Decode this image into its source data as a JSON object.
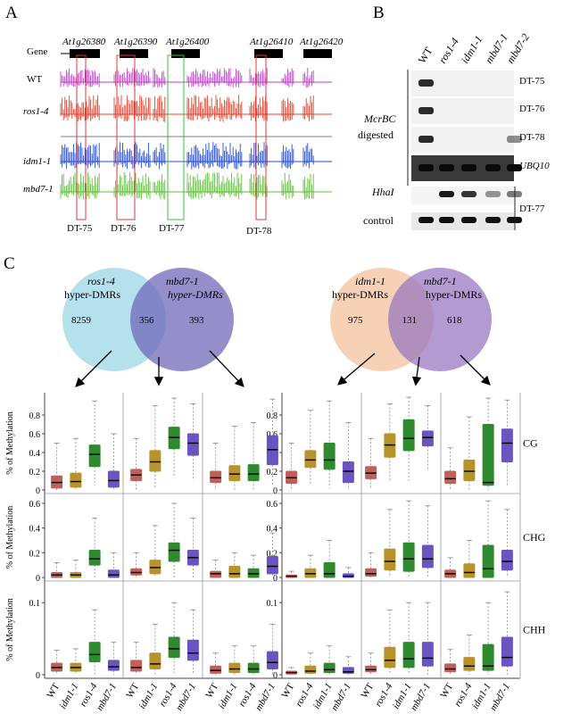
{
  "panel_a": {
    "label": "A",
    "gene_row_label": "Gene",
    "genes": [
      "At1g26380",
      "At1g26390",
      "At1g26400",
      "At1g26410",
      "At1g26420"
    ],
    "tracks": [
      {
        "label": "WT",
        "italic": false,
        "color": "#c040d0"
      },
      {
        "label": "ros1-4",
        "italic": true,
        "color": "#e8402a"
      },
      {
        "label": "idm1-1",
        "italic": true,
        "color": "#1f4be0"
      },
      {
        "label": "mbd7-1",
        "italic": true,
        "color": "#5cc234"
      }
    ],
    "regions": [
      {
        "label": "DT-75",
        "box_color": "#e23a3a"
      },
      {
        "label": "DT-76",
        "box_color": "#e23a3a"
      },
      {
        "label": "DT-77",
        "box_color": "#3cbf3c"
      },
      {
        "label": "DT-78",
        "box_color": "#e23a3a"
      }
    ]
  },
  "panel_b": {
    "label": "B",
    "lanes": [
      "WT",
      "ros1-4",
      "idm1-1",
      "mbd7-1",
      "mbd7-2"
    ],
    "group_label_1": "McrBC",
    "group_label_2": "digested",
    "rows": [
      {
        "label": "DT-75",
        "italic": false,
        "bands": [
          1,
          0,
          0,
          0,
          0
        ]
      },
      {
        "label": "DT-76",
        "italic": false,
        "bands": [
          1,
          0,
          0,
          0,
          0
        ]
      },
      {
        "label": "DT-78",
        "italic": false,
        "bands": [
          1,
          0,
          0,
          0,
          0.35
        ]
      },
      {
        "label": "UBQ10",
        "italic": true,
        "bands": [
          1,
          1,
          1,
          1,
          1
        ]
      }
    ],
    "hhai_label": "HhaI",
    "control_label": "control",
    "hhai_bands": [
      0,
      1,
      0.85,
      0.3,
      0.45
    ],
    "control_bands": [
      1,
      1,
      1,
      1,
      1
    ],
    "hhai_region": "DT-77"
  },
  "panel_c": {
    "label": "C",
    "venns": [
      {
        "left_name": "ros1-4",
        "left_sub": "hyper-DMRs",
        "right_name": "mbd7-1",
        "right_sub": "hyper-DMRs",
        "left_only": "8259",
        "overlap": "356",
        "right_only": "393",
        "left_color": "#a8dcea",
        "right_color": "#7068b8"
      },
      {
        "left_name": "idm1-1",
        "left_sub": "hyper-DMRs",
        "right_name": "mbd7-1",
        "right_sub": "hyper-DMRs",
        "left_only": "975",
        "overlap": "131",
        "right_only": "618",
        "left_color": "#f5c9a8",
        "right_color": "#9a78c0"
      }
    ],
    "ylabel": "% of Methylation",
    "contexts": [
      "CG",
      "CHG",
      "CHH"
    ],
    "yticks": [
      [
        "0",
        "0.2",
        "0.4",
        "0.6",
        "0.8"
      ],
      [
        "0",
        "0.2",
        "0.4",
        "0.6"
      ],
      [
        "0",
        "0.1"
      ]
    ],
    "genotypes_a": [
      "WT",
      "idm1-1",
      "ros1-4",
      "mbd7-1"
    ],
    "genotypes_b": [
      "WT",
      "ros1-4",
      "idm1-1",
      "mbd7-1"
    ],
    "box_colors": [
      "#c0605a",
      "#b8922a",
      "#2f8a2f",
      "#6a55c0"
    ]
  },
  "chart_data": [
    {
      "type": "box",
      "context": "CG",
      "set": "ros1-4 hyper-DMRs only",
      "ylim": [
        0,
        1
      ],
      "series": [
        {
          "name": "WT",
          "q1": 0.02,
          "median": 0.08,
          "q3": 0.15,
          "min": 0.0,
          "max": 0.5
        },
        {
          "name": "idm1-1",
          "q1": 0.03,
          "median": 0.09,
          "q3": 0.18,
          "min": 0.0,
          "max": 0.55
        },
        {
          "name": "ros1-4",
          "q1": 0.25,
          "median": 0.38,
          "q3": 0.48,
          "min": 0.05,
          "max": 0.95
        },
        {
          "name": "mbd7-1",
          "q1": 0.03,
          "median": 0.1,
          "q3": 0.2,
          "min": 0.0,
          "max": 0.6
        }
      ]
    },
    {
      "type": "box",
      "context": "CG",
      "set": "ros1-4 / mbd7-1 overlap",
      "ylim": [
        0,
        1
      ],
      "series": [
        {
          "name": "WT",
          "q1": 0.1,
          "median": 0.16,
          "q3": 0.22,
          "min": 0.0,
          "max": 0.55
        },
        {
          "name": "idm1-1",
          "q1": 0.2,
          "median": 0.3,
          "q3": 0.42,
          "min": 0.02,
          "max": 0.9
        },
        {
          "name": "ros1-4",
          "q1": 0.44,
          "median": 0.56,
          "q3": 0.67,
          "min": 0.15,
          "max": 0.98
        },
        {
          "name": "mbd7-1",
          "q1": 0.37,
          "median": 0.5,
          "q3": 0.6,
          "min": 0.1,
          "max": 0.92
        }
      ]
    },
    {
      "type": "box",
      "context": "CG",
      "set": "mbd7-1 hyper-DMRs only",
      "ylim": [
        0,
        1
      ],
      "series": [
        {
          "name": "WT",
          "q1": 0.08,
          "median": 0.13,
          "q3": 0.2,
          "min": 0.0,
          "max": 0.5
        },
        {
          "name": "idm1-1",
          "q1": 0.1,
          "median": 0.17,
          "q3": 0.26,
          "min": 0.0,
          "max": 0.68
        },
        {
          "name": "ros1-4",
          "q1": 0.1,
          "median": 0.17,
          "q3": 0.27,
          "min": 0.0,
          "max": 0.72
        },
        {
          "name": "mbd7-1",
          "q1": 0.27,
          "median": 0.43,
          "q3": 0.58,
          "min": 0.05,
          "max": 0.97
        }
      ]
    },
    {
      "type": "box",
      "context": "CG",
      "set": "idm1-1 hyper-DMRs only",
      "ylim": [
        0,
        1
      ],
      "series": [
        {
          "name": "WT",
          "q1": 0.07,
          "median": 0.13,
          "q3": 0.2,
          "min": 0.0,
          "max": 0.5
        },
        {
          "name": "ros1-4",
          "q1": 0.24,
          "median": 0.32,
          "q3": 0.42,
          "min": 0.05,
          "max": 0.85
        },
        {
          "name": "idm1-1",
          "q1": 0.22,
          "median": 0.32,
          "q3": 0.5,
          "min": 0.02,
          "max": 0.95
        },
        {
          "name": "mbd7-1",
          "q1": 0.08,
          "median": 0.2,
          "q3": 0.3,
          "min": 0.0,
          "max": 0.72
        }
      ]
    },
    {
      "type": "box",
      "context": "CG",
      "set": "idm1-1 / mbd7-1 overlap",
      "ylim": [
        0,
        1
      ],
      "series": [
        {
          "name": "WT",
          "q1": 0.12,
          "median": 0.18,
          "q3": 0.25,
          "min": 0.02,
          "max": 0.55
        },
        {
          "name": "ros1-4",
          "q1": 0.35,
          "median": 0.48,
          "q3": 0.6,
          "min": 0.1,
          "max": 0.92
        },
        {
          "name": "idm1-1",
          "q1": 0.42,
          "median": 0.55,
          "q3": 0.75,
          "min": 0.1,
          "max": 0.99
        },
        {
          "name": "mbd7-1",
          "q1": 0.47,
          "median": 0.56,
          "q3": 0.63,
          "min": 0.2,
          "max": 0.9
        }
      ]
    },
    {
      "type": "box",
      "context": "CG",
      "set": "mbd7-1 hyper-DMRs only (B)",
      "ylim": [
        0,
        1
      ],
      "series": [
        {
          "name": "WT",
          "q1": 0.07,
          "median": 0.12,
          "q3": 0.2,
          "min": 0.0,
          "max": 0.45
        },
        {
          "name": "ros1-4",
          "q1": 0.1,
          "median": 0.2,
          "q3": 0.32,
          "min": 0.0,
          "max": 0.78
        },
        {
          "name": "idm1-1",
          "q1": 0.05,
          "median": 0.08,
          "q3": 0.7,
          "min": 0.0,
          "max": 0.98
        },
        {
          "name": "mbd7-1",
          "q1": 0.3,
          "median": 0.5,
          "q3": 0.65,
          "min": 0.05,
          "max": 0.96
        }
      ]
    },
    {
      "type": "box",
      "context": "CHG",
      "set": "ros1-4 hyper-DMRs only",
      "ylim": [
        0,
        0.65
      ],
      "series": [
        {
          "name": "WT",
          "q1": 0.0,
          "median": 0.02,
          "q3": 0.04,
          "min": 0.0,
          "max": 0.12
        },
        {
          "name": "idm1-1",
          "q1": 0.0,
          "median": 0.02,
          "q3": 0.04,
          "min": 0.0,
          "max": 0.14
        },
        {
          "name": "ros1-4",
          "q1": 0.1,
          "median": 0.15,
          "q3": 0.22,
          "min": 0.0,
          "max": 0.48
        },
        {
          "name": "mbd7-1",
          "q1": 0.0,
          "median": 0.02,
          "q3": 0.06,
          "min": 0.0,
          "max": 0.2
        }
      ]
    },
    {
      "type": "box",
      "context": "CHG",
      "set": "ros1-4 / mbd7-1 overlap",
      "ylim": [
        0,
        0.65
      ],
      "series": [
        {
          "name": "WT",
          "q1": 0.02,
          "median": 0.04,
          "q3": 0.07,
          "min": 0.0,
          "max": 0.2
        },
        {
          "name": "idm1-1",
          "q1": 0.03,
          "median": 0.08,
          "q3": 0.14,
          "min": 0.0,
          "max": 0.42
        },
        {
          "name": "ros1-4",
          "q1": 0.13,
          "median": 0.22,
          "q3": 0.28,
          "min": 0.0,
          "max": 0.6
        },
        {
          "name": "mbd7-1",
          "q1": 0.1,
          "median": 0.16,
          "q3": 0.22,
          "min": 0.0,
          "max": 0.48
        }
      ]
    },
    {
      "type": "box",
      "context": "CHG",
      "set": "mbd7-1 hyper-DMRs only",
      "ylim": [
        0,
        0.65
      ],
      "series": [
        {
          "name": "WT",
          "q1": 0.0,
          "median": 0.03,
          "q3": 0.05,
          "min": 0.0,
          "max": 0.14
        },
        {
          "name": "idm1-1",
          "q1": 0.0,
          "median": 0.03,
          "q3": 0.09,
          "min": 0.0,
          "max": 0.2
        },
        {
          "name": "ros1-4",
          "q1": 0.0,
          "median": 0.03,
          "q3": 0.07,
          "min": 0.0,
          "max": 0.18
        },
        {
          "name": "mbd7-1",
          "q1": 0.03,
          "median": 0.09,
          "q3": 0.17,
          "min": 0.0,
          "max": 0.36
        }
      ]
    },
    {
      "type": "box",
      "context": "CHG",
      "set": "idm1-1 hyper-DMRs only",
      "ylim": [
        0,
        0.65
      ],
      "series": [
        {
          "name": "WT",
          "q1": 0.0,
          "median": 0.01,
          "q3": 0.02,
          "min": 0.0,
          "max": 0.05
        },
        {
          "name": "ros1-4",
          "q1": 0.0,
          "median": 0.03,
          "q3": 0.07,
          "min": 0.0,
          "max": 0.18
        },
        {
          "name": "idm1-1",
          "q1": 0.0,
          "median": 0.03,
          "q3": 0.12,
          "min": 0.0,
          "max": 0.3
        },
        {
          "name": "mbd7-1",
          "q1": 0.0,
          "median": 0.01,
          "q3": 0.03,
          "min": 0.0,
          "max": 0.08
        }
      ]
    },
    {
      "type": "box",
      "context": "CHG",
      "set": "idm1-1 / mbd7-1 overlap",
      "ylim": [
        0,
        0.65
      ],
      "series": [
        {
          "name": "WT",
          "q1": 0.01,
          "median": 0.03,
          "q3": 0.07,
          "min": 0.0,
          "max": 0.2
        },
        {
          "name": "ros1-4",
          "q1": 0.06,
          "median": 0.13,
          "q3": 0.23,
          "min": 0.0,
          "max": 0.55
        },
        {
          "name": "idm1-1",
          "q1": 0.05,
          "median": 0.15,
          "q3": 0.28,
          "min": 0.0,
          "max": 0.62
        },
        {
          "name": "mbd7-1",
          "q1": 0.08,
          "median": 0.15,
          "q3": 0.26,
          "min": 0.0,
          "max": 0.58
        }
      ]
    },
    {
      "type": "box",
      "context": "CHG",
      "set": "mbd7-1 hyper-DMRs only (B)",
      "ylim": [
        0,
        0.65
      ],
      "series": [
        {
          "name": "WT",
          "q1": 0.0,
          "median": 0.03,
          "q3": 0.06,
          "min": 0.0,
          "max": 0.16
        },
        {
          "name": "ros1-4",
          "q1": 0.0,
          "median": 0.04,
          "q3": 0.11,
          "min": 0.0,
          "max": 0.3
        },
        {
          "name": "idm1-1",
          "q1": 0.0,
          "median": 0.07,
          "q3": 0.26,
          "min": 0.0,
          "max": 0.62
        },
        {
          "name": "mbd7-1",
          "q1": 0.06,
          "median": 0.13,
          "q3": 0.22,
          "min": 0.0,
          "max": 0.55
        }
      ]
    },
    {
      "type": "box",
      "context": "CHH",
      "set": "ros1-4 hyper-DMRs only",
      "ylim": [
        0,
        0.125
      ],
      "series": [
        {
          "name": "WT",
          "q1": 0.005,
          "median": 0.01,
          "q3": 0.016,
          "min": 0.0,
          "max": 0.034
        },
        {
          "name": "idm1-1",
          "q1": 0.005,
          "median": 0.01,
          "q3": 0.016,
          "min": 0.0,
          "max": 0.036
        },
        {
          "name": "ros1-4",
          "q1": 0.018,
          "median": 0.028,
          "q3": 0.045,
          "min": 0.0,
          "max": 0.09
        },
        {
          "name": "mbd7-1",
          "q1": 0.006,
          "median": 0.011,
          "q3": 0.02,
          "min": 0.0,
          "max": 0.045
        }
      ]
    },
    {
      "type": "box",
      "context": "CHH",
      "set": "ros1-4 / mbd7-1 overlap",
      "ylim": [
        0,
        0.125
      ],
      "series": [
        {
          "name": "WT",
          "q1": 0.005,
          "median": 0.01,
          "q3": 0.02,
          "min": 0.0,
          "max": 0.045
        },
        {
          "name": "idm1-1",
          "q1": 0.008,
          "median": 0.015,
          "q3": 0.03,
          "min": 0.0,
          "max": 0.07
        },
        {
          "name": "ros1-4",
          "q1": 0.024,
          "median": 0.036,
          "q3": 0.052,
          "min": 0.002,
          "max": 0.1
        },
        {
          "name": "mbd7-1",
          "q1": 0.02,
          "median": 0.03,
          "q3": 0.048,
          "min": 0.0,
          "max": 0.09
        }
      ]
    },
    {
      "type": "box",
      "context": "CHH",
      "set": "mbd7-1 hyper-DMRs only",
      "ylim": [
        0,
        0.125
      ],
      "series": [
        {
          "name": "WT",
          "q1": 0.002,
          "median": 0.006,
          "q3": 0.012,
          "min": 0.0,
          "max": 0.03
        },
        {
          "name": "idm1-1",
          "q1": 0.003,
          "median": 0.008,
          "q3": 0.016,
          "min": 0.0,
          "max": 0.04
        },
        {
          "name": "ros1-4",
          "q1": 0.003,
          "median": 0.008,
          "q3": 0.016,
          "min": 0.0,
          "max": 0.04
        },
        {
          "name": "mbd7-1",
          "q1": 0.008,
          "median": 0.017,
          "q3": 0.032,
          "min": 0.0,
          "max": 0.07
        }
      ]
    },
    {
      "type": "box",
      "context": "CHH",
      "set": "idm1-1 hyper-DMRs only",
      "ylim": [
        0,
        0.125
      ],
      "series": [
        {
          "name": "WT",
          "q1": 0.001,
          "median": 0.003,
          "q3": 0.005,
          "min": 0.0,
          "max": 0.01
        },
        {
          "name": "ros1-4",
          "q1": 0.002,
          "median": 0.005,
          "q3": 0.012,
          "min": 0.0,
          "max": 0.03
        },
        {
          "name": "idm1-1",
          "q1": 0.003,
          "median": 0.007,
          "q3": 0.016,
          "min": 0.0,
          "max": 0.04
        },
        {
          "name": "mbd7-1",
          "q1": 0.002,
          "median": 0.004,
          "q3": 0.01,
          "min": 0.0,
          "max": 0.025
        }
      ]
    },
    {
      "type": "box",
      "context": "CHH",
      "set": "idm1-1 / mbd7-1 overlap",
      "ylim": [
        0,
        0.125
      ],
      "series": [
        {
          "name": "WT",
          "q1": 0.004,
          "median": 0.007,
          "q3": 0.012,
          "min": 0.0,
          "max": 0.03
        },
        {
          "name": "ros1-4",
          "q1": 0.01,
          "median": 0.02,
          "q3": 0.038,
          "min": 0.0,
          "max": 0.09
        },
        {
          "name": "idm1-1",
          "q1": 0.01,
          "median": 0.022,
          "q3": 0.045,
          "min": 0.0,
          "max": 0.1
        },
        {
          "name": "mbd7-1",
          "q1": 0.012,
          "median": 0.023,
          "q3": 0.045,
          "min": 0.0,
          "max": 0.1
        }
      ]
    },
    {
      "type": "box",
      "context": "CHH",
      "set": "mbd7-1 hyper-DMRs only (B)",
      "ylim": [
        0,
        0.125
      ],
      "series": [
        {
          "name": "WT",
          "q1": 0.004,
          "median": 0.008,
          "q3": 0.015,
          "min": 0.0,
          "max": 0.035
        },
        {
          "name": "ros1-4",
          "q1": 0.006,
          "median": 0.012,
          "q3": 0.024,
          "min": 0.0,
          "max": 0.055
        },
        {
          "name": "idm1-1",
          "q1": 0.006,
          "median": 0.012,
          "q3": 0.042,
          "min": 0.0,
          "max": 0.1
        },
        {
          "name": "mbd7-1",
          "q1": 0.012,
          "median": 0.024,
          "q3": 0.052,
          "min": 0.0,
          "max": 0.115
        }
      ]
    }
  ]
}
